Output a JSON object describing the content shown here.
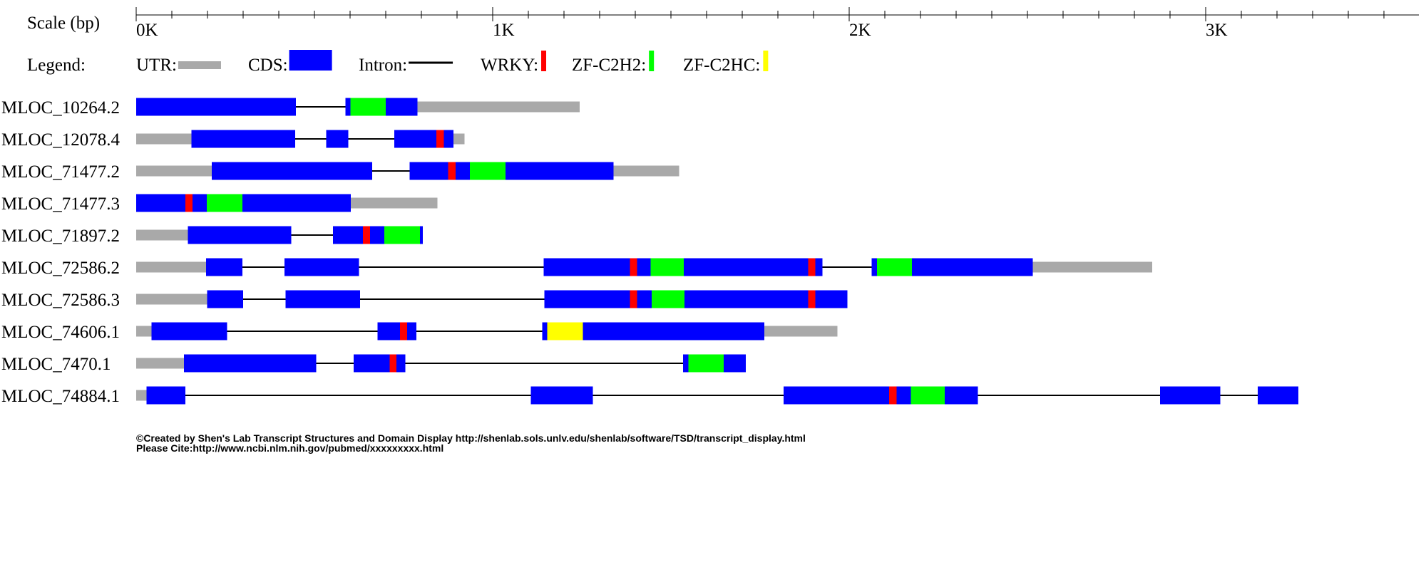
{
  "scale": {
    "label": "Scale (bp)",
    "ticks": [
      {
        "bp": 0,
        "label": "0K"
      },
      {
        "bp": 1000,
        "label": "1K"
      },
      {
        "bp": 2000,
        "label": "2K"
      },
      {
        "bp": 3000,
        "label": "3K"
      }
    ],
    "minor_step_bp": 100
  },
  "legend": {
    "title": "Legend:",
    "items": [
      {
        "key": "utr",
        "label": "UTR:",
        "kind": "utr",
        "color": "#a9a9a9"
      },
      {
        "key": "cds",
        "label": "CDS:",
        "kind": "cds",
        "color": "#0000ff"
      },
      {
        "key": "intron",
        "label": "Intron:",
        "kind": "intron",
        "color": "#000000"
      },
      {
        "key": "wrky",
        "label": "WRKY:",
        "kind": "domain",
        "color": "#ff0000"
      },
      {
        "key": "zfc2h2",
        "label": "ZF-C2H2:",
        "kind": "domain",
        "color": "#00ff00"
      },
      {
        "key": "zfc2hc",
        "label": "ZF-C2HC:",
        "kind": "domain",
        "color": "#ffff00"
      }
    ]
  },
  "colors": {
    "utr": "#a9a9a9",
    "cds": "#0000ff",
    "intron": "#000000",
    "wrky": "#ff0000",
    "zfc2h2": "#00ff00",
    "zfc2hc": "#ffff00"
  },
  "chart_data": {
    "type": "gene-structure",
    "units": "bp",
    "transcripts": [
      {
        "id": "MLOC_10264.2",
        "utr": [
          [
            750,
            1244
          ]
        ],
        "cds": [
          [
            0,
            448
          ],
          [
            587,
            789
          ]
        ],
        "domains": [
          {
            "type": "zfc2h2",
            "range": [
              601,
              700
            ]
          }
        ]
      },
      {
        "id": "MLOC_12078.4",
        "utr": [
          [
            0,
            155
          ],
          [
            890,
            921
          ]
        ],
        "cds": [
          [
            155,
            446
          ],
          [
            533,
            595
          ],
          [
            724,
            890
          ]
        ],
        "domains": [
          {
            "type": "wrky",
            "range": [
              842,
              863
            ]
          }
        ]
      },
      {
        "id": "MLOC_71477.2",
        "utr": [
          [
            0,
            212
          ],
          [
            1339,
            1523
          ]
        ],
        "cds": [
          [
            212,
            662
          ],
          [
            767,
            1339
          ]
        ],
        "domains": [
          {
            "type": "wrky",
            "range": [
              875,
              896
            ]
          },
          {
            "type": "zfc2h2",
            "range": [
              936,
              1036
            ]
          }
        ]
      },
      {
        "id": "MLOC_71477.3",
        "utr": [
          [
            602,
            845
          ]
        ],
        "cds": [
          [
            0,
            602
          ]
        ],
        "domains": [
          {
            "type": "wrky",
            "range": [
              138,
              158
            ]
          },
          {
            "type": "zfc2h2",
            "range": [
              198,
              298
            ]
          }
        ]
      },
      {
        "id": "MLOC_71897.2",
        "utr": [
          [
            0,
            145
          ]
        ],
        "cds": [
          [
            145,
            435
          ],
          [
            552,
            804
          ]
        ],
        "domains": [
          {
            "type": "wrky",
            "range": [
              636,
              656
            ]
          },
          {
            "type": "zfc2h2",
            "range": [
              696,
              796
            ]
          }
        ]
      },
      {
        "id": "MLOC_72586.2",
        "utr": [
          [
            0,
            196
          ],
          [
            2515,
            2850
          ]
        ],
        "cds": [
          [
            196,
            298
          ],
          [
            416,
            625
          ],
          [
            1143,
            1925
          ],
          [
            2063,
            2515
          ]
        ],
        "domains": [
          {
            "type": "wrky",
            "range": [
              1385,
              1405
            ]
          },
          {
            "type": "zfc2h2",
            "range": [
              1443,
              1536
            ]
          },
          {
            "type": "wrky",
            "range": [
              1885,
              1905
            ]
          },
          {
            "type": "zfc2h2",
            "range": [
              2078,
              2176
            ]
          }
        ]
      },
      {
        "id": "MLOC_72586.3",
        "utr": [
          [
            0,
            199
          ]
        ],
        "cds": [
          [
            199,
            300
          ],
          [
            419,
            628
          ],
          [
            1145,
            1995
          ]
        ],
        "domains": [
          {
            "type": "wrky",
            "range": [
              1385,
              1405
            ]
          },
          {
            "type": "zfc2h2",
            "range": [
              1446,
              1538
            ]
          },
          {
            "type": "wrky",
            "range": [
              1885,
              1905
            ]
          }
        ]
      },
      {
        "id": "MLOC_74606.1",
        "utr": [
          [
            0,
            43
          ],
          [
            1762,
            1967
          ]
        ],
        "cds": [
          [
            43,
            255
          ],
          [
            677,
            786
          ],
          [
            1139,
            1762
          ]
        ],
        "domains": [
          {
            "type": "wrky",
            "range": [
              740,
              760
            ]
          },
          {
            "type": "zfc2hc",
            "range": [
              1153,
              1253
            ]
          }
        ]
      },
      {
        "id": "MLOC_7470.1",
        "utr": [
          [
            0,
            134
          ]
        ],
        "cds": [
          [
            134,
            505
          ],
          [
            610,
            755
          ],
          [
            1534,
            1710
          ]
        ],
        "domains": [
          {
            "type": "wrky",
            "range": [
              711,
              730
            ]
          },
          {
            "type": "zfc2h2",
            "range": [
              1549,
              1648
            ]
          }
        ]
      },
      {
        "id": "MLOC_74884.1",
        "utr": [
          [
            0,
            29
          ]
        ],
        "cds": [
          [
            29,
            138
          ],
          [
            1107,
            1281
          ],
          [
            1816,
            2361
          ],
          [
            2872,
            3041
          ],
          [
            3146,
            3260
          ]
        ],
        "domains": [
          {
            "type": "wrky",
            "range": [
              2112,
              2133
            ]
          },
          {
            "type": "zfc2h2",
            "range": [
              2173,
              2268
            ]
          }
        ]
      }
    ]
  },
  "footer": {
    "line1": "©Created by Shen's Lab Transcript Structures and Domain Display http://shenlab.sols.unlv.edu/shenlab/software/TSD/transcript_display.html",
    "line2": "Please Cite:http://www.ncbi.nlm.nih.gov/pubmed/xxxxxxxxx.html"
  }
}
